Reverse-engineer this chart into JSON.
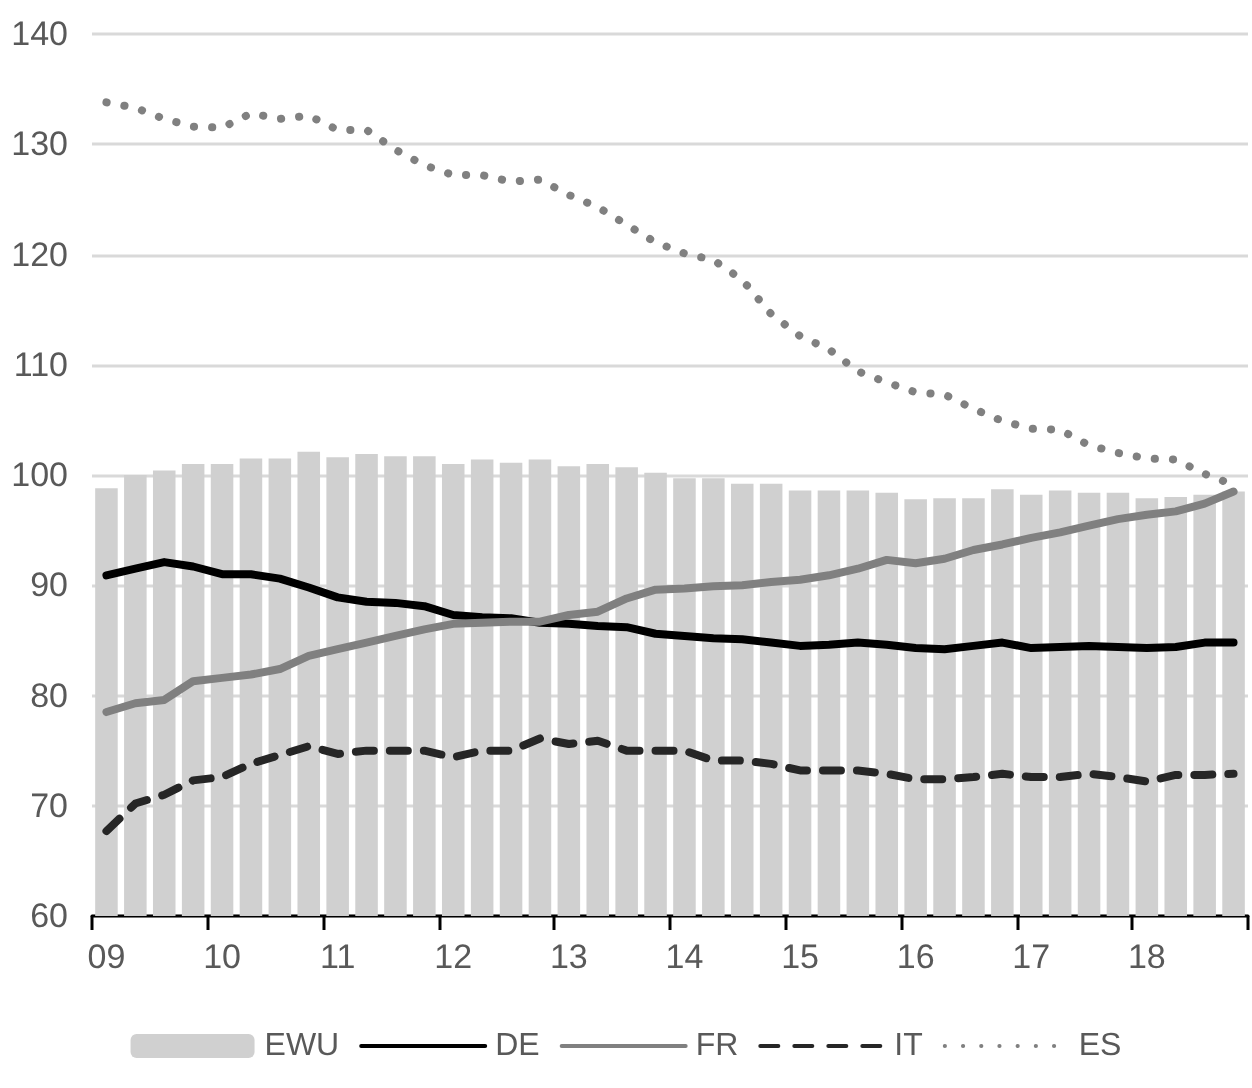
{
  "chart_data": {
    "type": "bar",
    "categories": [
      "09",
      null,
      null,
      null,
      "10",
      null,
      null,
      null,
      "11",
      null,
      null,
      null,
      "12",
      null,
      null,
      null,
      "13",
      null,
      null,
      null,
      "14",
      null,
      null,
      null,
      "15",
      null,
      null,
      null,
      "16",
      null,
      null,
      null,
      "17",
      null,
      null,
      null,
      "18",
      null,
      null,
      null
    ],
    "series": [
      {
        "name": "EWU",
        "color": "#d0d0d0",
        "values": [
          98.8,
          100.0,
          100.4,
          101.0,
          101.0,
          101.5,
          101.5,
          102.1,
          101.6,
          101.9,
          101.7,
          101.7,
          101.0,
          101.4,
          101.1,
          101.4,
          100.8,
          101.0,
          100.7,
          100.2,
          99.7,
          99.7,
          99.2,
          99.2,
          98.6,
          98.6,
          98.6,
          98.4,
          97.8,
          97.9,
          97.9,
          98.7,
          98.2,
          98.6,
          98.4,
          98.4,
          97.9,
          98.0,
          98.2,
          98.5
        ]
      },
      {
        "name": "DE",
        "type": "line",
        "color": "#000000",
        "line_style": "solid",
        "values": [
          90.9,
          91.5,
          92.1,
          91.7,
          91.0,
          91.0,
          90.6,
          89.8,
          88.9,
          88.5,
          88.4,
          88.1,
          87.3,
          87.1,
          87.0,
          86.6,
          86.5,
          86.3,
          86.2,
          85.6,
          85.4,
          85.2,
          85.1,
          84.8,
          84.5,
          84.6,
          84.8,
          84.6,
          84.3,
          84.2,
          84.5,
          84.8,
          84.3,
          84.4,
          84.5,
          84.4,
          84.3,
          84.4,
          84.8,
          84.8
        ]
      },
      {
        "name": "FR",
        "type": "line",
        "color": "#808080",
        "line_style": "solid",
        "values": [
          78.5,
          79.3,
          79.6,
          81.3,
          81.6,
          81.9,
          82.4,
          83.6,
          84.2,
          84.8,
          85.4,
          86.0,
          86.5,
          86.6,
          86.7,
          86.7,
          87.3,
          87.6,
          88.8,
          89.6,
          89.7,
          89.9,
          90.0,
          90.3,
          90.5,
          90.9,
          91.5,
          92.3,
          92.0,
          92.4,
          93.2,
          93.7,
          94.3,
          94.8,
          95.4,
          96.0,
          96.4,
          96.7,
          97.4,
          98.5
        ]
      },
      {
        "name": "IT",
        "type": "line",
        "color": "#262626",
        "line_style": "dashed",
        "values": [
          67.7,
          70.2,
          71.0,
          72.3,
          72.6,
          73.8,
          74.6,
          75.4,
          74.7,
          75.0,
          75.0,
          75.0,
          74.4,
          75.0,
          75.0,
          76.1,
          75.6,
          75.9,
          75.0,
          75.0,
          75.0,
          74.1,
          74.1,
          73.8,
          73.2,
          73.2,
          73.2,
          72.9,
          72.4,
          72.4,
          72.6,
          72.9,
          72.6,
          72.6,
          72.9,
          72.6,
          72.2,
          72.8,
          72.8,
          72.9
        ]
      },
      {
        "name": "ES",
        "type": "line",
        "color": "#808080",
        "line_style": "dotted",
        "values": [
          133.8,
          133.3,
          132.3,
          131.6,
          131.5,
          132.8,
          132.3,
          132.6,
          131.3,
          131.3,
          129.5,
          128.1,
          127.2,
          127.2,
          126.6,
          126.8,
          125.4,
          124.3,
          122.7,
          121.1,
          120.1,
          119.5,
          117.7,
          114.6,
          112.6,
          111.4,
          109.4,
          108.4,
          107.5,
          107.3,
          106.0,
          104.9,
          104.2,
          104.1,
          102.7,
          102.0,
          101.5,
          101.4,
          100.1,
          99.1
        ]
      }
    ],
    "ylim": [
      60,
      140
    ],
    "yticks": [
      60,
      70,
      80,
      90,
      100,
      110,
      120,
      130,
      140
    ],
    "grid": "y",
    "legend": "bottom"
  }
}
